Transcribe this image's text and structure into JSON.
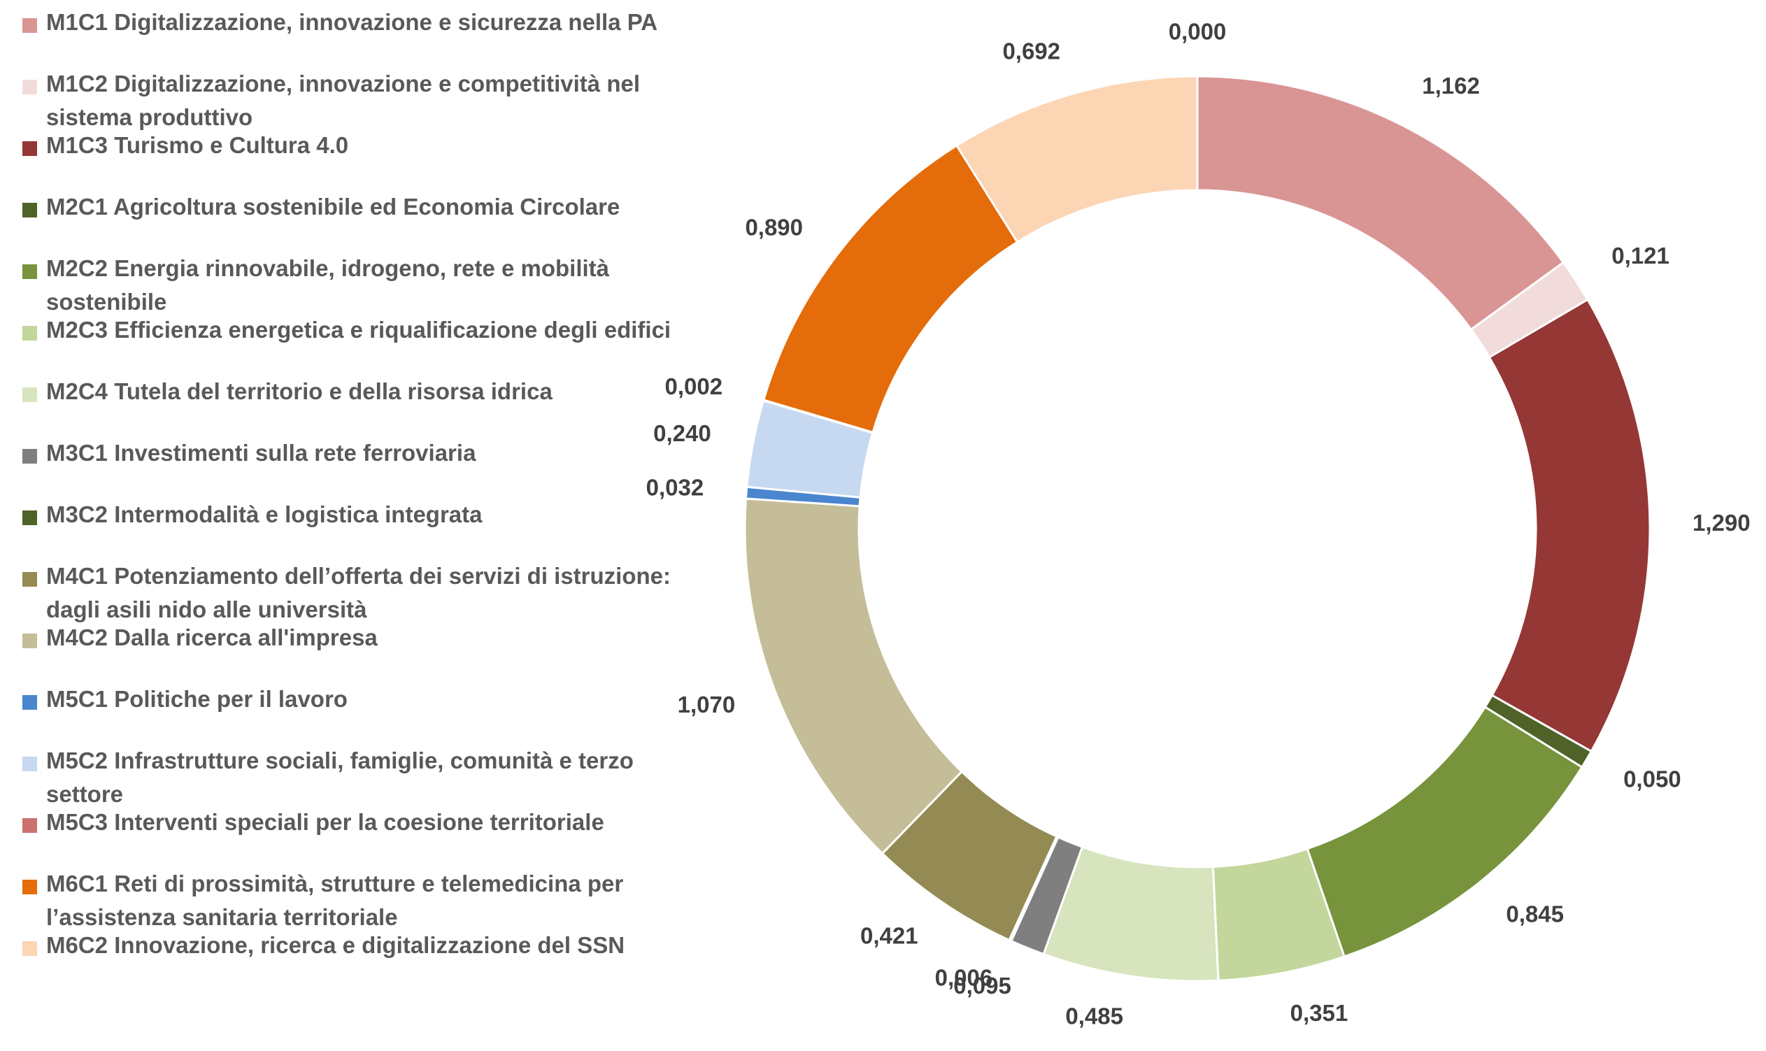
{
  "chart_data": {
    "type": "pie",
    "variant": "doughnut",
    "title": "",
    "legend_position": "left",
    "label_decimal_separator": ",",
    "slices": [
      {
        "name": "M1C1 Digitalizzazione, innovazione e sicurezza nella PA",
        "value": 1.162,
        "label": "1,162",
        "color": "#D99594"
      },
      {
        "name": "M1C2 Digitalizzazione, innovazione e competitività nel sistema produttivo",
        "value": 0.121,
        "label": "0,121",
        "color": "#F2DCDB"
      },
      {
        "name": "M1C3 Turismo e Cultura 4.0",
        "value": 1.29,
        "label": "1,290",
        "color": "#953735"
      },
      {
        "name": "M2C1 Agricoltura sostenibile ed Economia Circolare",
        "value": 0.05,
        "label": "0,050",
        "color": "#4F6228"
      },
      {
        "name": "M2C2 Energia rinnovabile, idrogeno, rete e mobilità sostenibile",
        "value": 0.845,
        "label": "0,845",
        "color": "#77933C"
      },
      {
        "name": "M2C3 Efficienza energetica e riqualificazione degli edifici",
        "value": 0.351,
        "label": "0,351",
        "color": "#C3D69B"
      },
      {
        "name": "M2C4 Tutela del territorio e della risorsa idrica",
        "value": 0.485,
        "label": "0,485",
        "color": "#D7E4BD"
      },
      {
        "name": "M3C1 Investimenti sulla rete ferroviaria",
        "value": 0.095,
        "label": "0,095",
        "color": "#7F7F7F"
      },
      {
        "name": "M3C2 Intermodalità e logistica integrata",
        "value": 0.006,
        "label": "0,006",
        "color": "#4F6228"
      },
      {
        "name": "M4C1 Potenziamento dell’offerta dei servizi di istruzione: dagli asili nido alle università",
        "value": 0.421,
        "label": "0,421",
        "color": "#948A54"
      },
      {
        "name": "M4C2 Dalla ricerca all'impresa",
        "value": 1.07,
        "label": "1,070",
        "color": "#C4BD97"
      },
      {
        "name": "M5C1 Politiche per il lavoro",
        "value": 0.032,
        "label": "0,032",
        "color": "#4A86CF"
      },
      {
        "name": "M5C2 Infrastrutture sociali, famiglie, comunità e terzo settore",
        "value": 0.24,
        "label": "0,240",
        "color": "#C6D9F1"
      },
      {
        "name": "M5C3 Interventi speciali per la coesione territoriale",
        "value": 0.002,
        "label": "0,002",
        "color": "#CD7070"
      },
      {
        "name": "M6C1 Reti di prossimità, strutture e telemedicina per l’assistenza sanitaria territoriale",
        "value": 0.89,
        "label": "0,890",
        "color": "#E46C0A"
      },
      {
        "name": "M6C2 Innovazione, ricerca e digitalizzazione del SSN",
        "value": 0.692,
        "label": "0,692",
        "color": "#FCD5B5"
      },
      {
        "name": "",
        "value": 0.0,
        "label": "0,000",
        "color": "#FCD5B5"
      }
    ]
  },
  "style": {
    "label_color": "#404040",
    "legend_text_color": "#595959",
    "slice_border_color": "#FFFFFF"
  }
}
